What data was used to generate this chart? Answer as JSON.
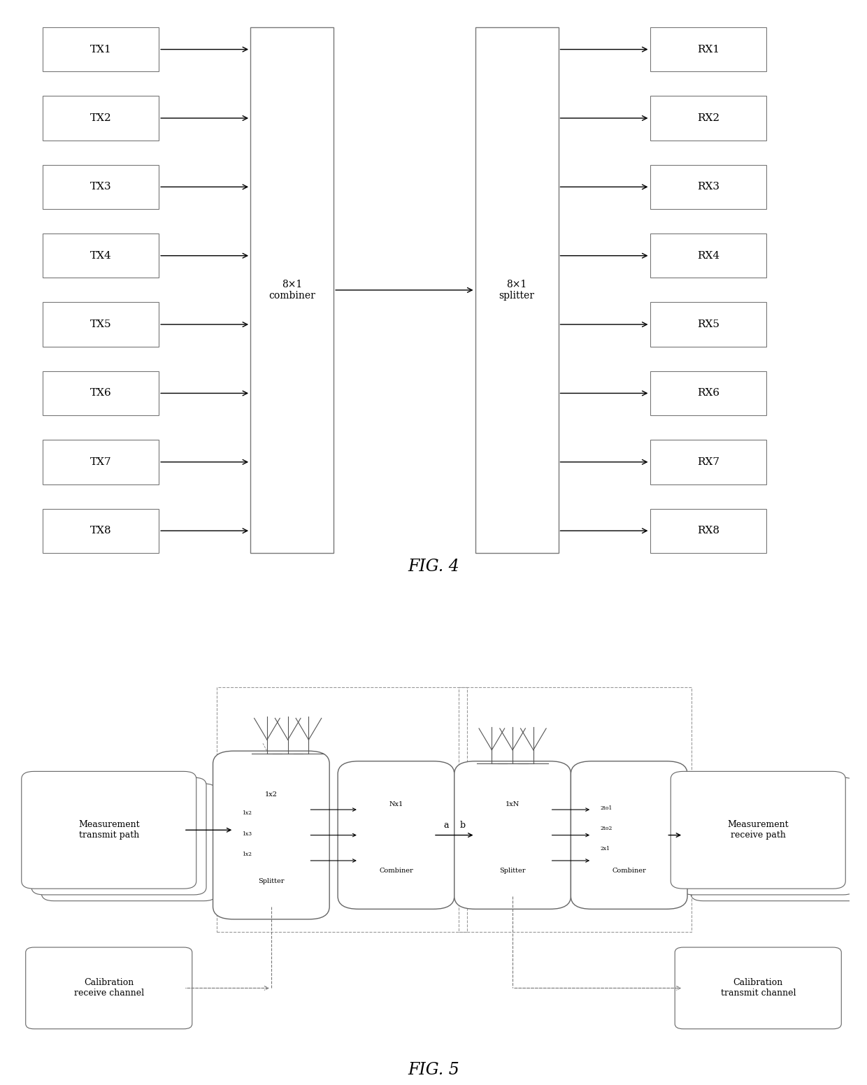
{
  "fig4": {
    "tx_labels": [
      "TX1",
      "TX2",
      "TX3",
      "TX4",
      "TX5",
      "TX6",
      "TX7",
      "TX8"
    ],
    "rx_labels": [
      "RX1",
      "RX2",
      "RX3",
      "RX4",
      "RX5",
      "RX6",
      "RX7",
      "RX8"
    ],
    "combiner_label": "8×1\ncombiner",
    "splitter_label": "8×1\nsplitter",
    "fig_label": "FIG. 4"
  },
  "fig5": {
    "fig_label": "FIG. 5",
    "mtp_label": "Measurement\ntransmit path",
    "mrp_label": "Measurement\nreceive path",
    "crc_label": "Calibration\nreceive channel",
    "ctc_label": "Calibration\ntransmit channel",
    "splitter_label": "1x2\nSplitter",
    "combiner_nx1_label": "Nx1",
    "combiner_1xn_label": "1xN",
    "rx_combiner_label": "Combiner",
    "splitter_main_label": "Splitter",
    "a_label": "a",
    "b_label": "b"
  },
  "colors": {
    "box": "#000000",
    "bg": "#ffffff",
    "arrow": "#000000",
    "dashed": "#888888"
  }
}
